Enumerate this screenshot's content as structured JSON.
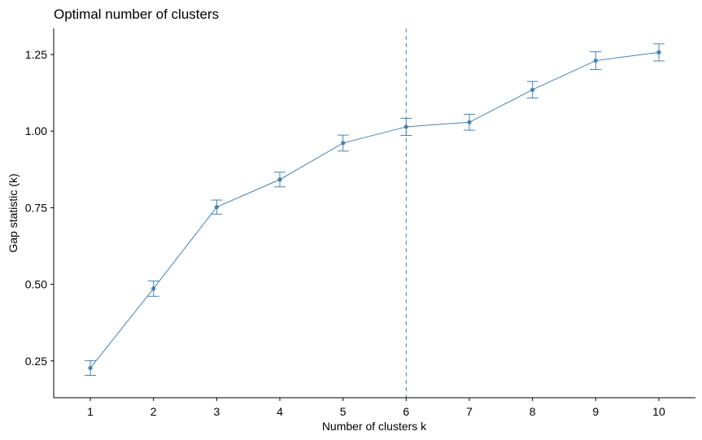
{
  "chart_data": {
    "type": "line",
    "title": "Optimal number of clusters",
    "xlabel": "Number of clusters k",
    "ylabel": "Gap statistic (k)",
    "x": [
      1,
      2,
      3,
      4,
      5,
      6,
      7,
      8,
      9,
      10
    ],
    "series": [
      {
        "values": [
          0.227,
          0.486,
          0.752,
          0.842,
          0.961,
          1.014,
          1.029,
          1.135,
          1.23,
          1.257
        ],
        "error": [
          0.024,
          0.025,
          0.023,
          0.024,
          0.026,
          0.028,
          0.026,
          0.027,
          0.029,
          0.028
        ]
      }
    ],
    "reference_line": {
      "x": 6,
      "style": "dashed"
    },
    "xticks": [
      "1",
      "2",
      "3",
      "4",
      "5",
      "6",
      "7",
      "8",
      "9",
      "10"
    ],
    "yticks": [
      "0.25",
      "0.50",
      "0.75",
      "1.00",
      "1.25"
    ],
    "ytick_values": [
      0.25,
      0.5,
      0.75,
      1.0,
      1.25
    ],
    "xlim": [
      0.42,
      10.58
    ],
    "ylim": [
      0.13,
      1.335
    ],
    "grid": false,
    "legend": "none",
    "colors": {
      "series": "#4682b4",
      "axis": "#000000"
    }
  }
}
